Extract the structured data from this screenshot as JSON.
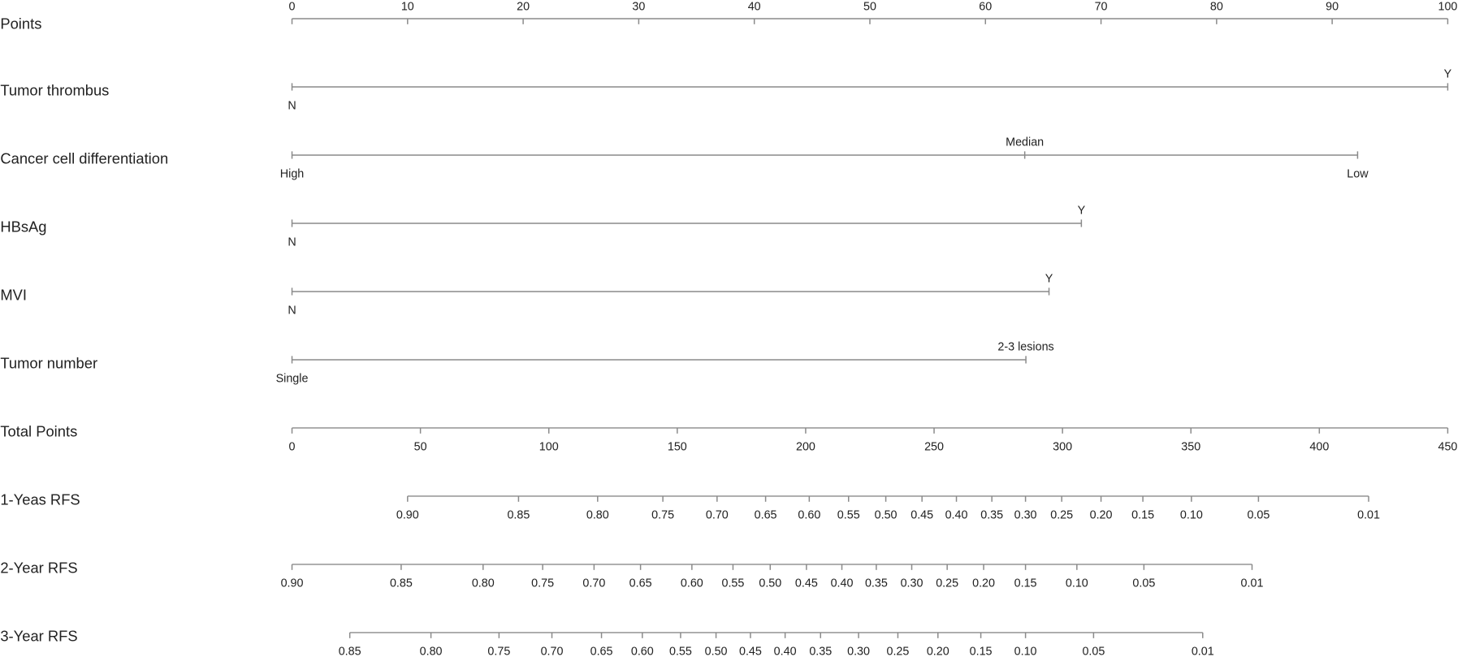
{
  "chart_data": {
    "type": "nomogram",
    "points_axis": {
      "label": "Points",
      "lim": [
        0,
        100
      ],
      "ticks": [
        0,
        10,
        20,
        30,
        40,
        50,
        60,
        70,
        80,
        90,
        100
      ]
    },
    "variables": [
      {
        "name": "Tumor thrombus",
        "levels": [
          {
            "label": "N",
            "points": 0
          },
          {
            "label": "Y",
            "points": 100
          }
        ]
      },
      {
        "name": "Cancer cell differentiation",
        "levels": [
          {
            "label": "High",
            "points": 0
          },
          {
            "label": "Median",
            "points": 63.4
          },
          {
            "label": "Low",
            "points": 92.2
          }
        ]
      },
      {
        "name": "HBsAg",
        "levels": [
          {
            "label": "N",
            "points": 0
          },
          {
            "label": "Y",
            "points": 68.3
          }
        ]
      },
      {
        "name": "MVI",
        "levels": [
          {
            "label": "N",
            "points": 0
          },
          {
            "label": "Y",
            "points": 65.5
          }
        ]
      },
      {
        "name": "Tumor number",
        "levels": [
          {
            "label": "Single",
            "points": 0
          },
          {
            "label": "2-3 lesions",
            "points": 63.5
          }
        ]
      }
    ],
    "total_points_axis": {
      "label": "Total Points",
      "lim": [
        0,
        450
      ],
      "ticks": [
        0,
        50,
        100,
        150,
        200,
        250,
        300,
        350,
        400,
        450
      ]
    },
    "probability_axes": [
      {
        "name": "1-Yeas RFS",
        "ticks": [
          {
            "value": 0.9,
            "label": "0.90",
            "points": 45.0
          },
          {
            "value": 0.85,
            "label": "0.85",
            "points": 88.2
          },
          {
            "value": 0.8,
            "label": "0.80",
            "points": 119.0
          },
          {
            "value": 0.75,
            "label": "0.75",
            "points": 144.4
          },
          {
            "value": 0.7,
            "label": "0.70",
            "points": 165.5
          },
          {
            "value": 0.65,
            "label": "0.65",
            "points": 184.4
          },
          {
            "value": 0.6,
            "label": "0.60",
            "points": 201.4
          },
          {
            "value": 0.55,
            "label": "0.55",
            "points": 216.7
          },
          {
            "value": 0.5,
            "label": "0.50",
            "points": 231.2
          },
          {
            "value": 0.45,
            "label": "0.45",
            "points": 245.3
          },
          {
            "value": 0.4,
            "label": "0.40",
            "points": 258.7
          },
          {
            "value": 0.35,
            "label": "0.35",
            "points": 272.5
          },
          {
            "value": 0.3,
            "label": "0.30",
            "points": 285.6
          },
          {
            "value": 0.25,
            "label": "0.25",
            "points": 299.7
          },
          {
            "value": 0.2,
            "label": "0.20",
            "points": 315.0
          },
          {
            "value": 0.15,
            "label": "0.15",
            "points": 331.3
          },
          {
            "value": 0.1,
            "label": "0.10",
            "points": 350.2
          },
          {
            "value": 0.05,
            "label": "0.05",
            "points": 376.3
          },
          {
            "value": 0.01,
            "label": "0.01",
            "points": 419.2
          }
        ]
      },
      {
        "name": "2-Year RFS",
        "ticks": [
          {
            "value": 0.9,
            "label": "0.90",
            "points": 0
          },
          {
            "value": 0.85,
            "label": "0.85",
            "points": 42.5
          },
          {
            "value": 0.8,
            "label": "0.80",
            "points": 74.4
          },
          {
            "value": 0.75,
            "label": "0.75",
            "points": 97.6
          },
          {
            "value": 0.7,
            "label": "0.70",
            "points": 117.6
          },
          {
            "value": 0.65,
            "label": "0.65",
            "points": 135.7
          },
          {
            "value": 0.6,
            "label": "0.60",
            "points": 155.7
          },
          {
            "value": 0.55,
            "label": "0.55",
            "points": 171.7
          },
          {
            "value": 0.5,
            "label": "0.50",
            "points": 186.2
          },
          {
            "value": 0.45,
            "label": "0.45",
            "points": 200.3
          },
          {
            "value": 0.4,
            "label": "0.40",
            "points": 214.1
          },
          {
            "value": 0.35,
            "label": "0.35",
            "points": 227.5
          },
          {
            "value": 0.3,
            "label": "0.30",
            "points": 241.3
          },
          {
            "value": 0.25,
            "label": "0.25",
            "points": 255.1
          },
          {
            "value": 0.2,
            "label": "0.20",
            "points": 269.3
          },
          {
            "value": 0.15,
            "label": "0.15",
            "points": 285.6
          },
          {
            "value": 0.1,
            "label": "0.10",
            "points": 305.6
          },
          {
            "value": 0.05,
            "label": "0.05",
            "points": 331.7
          },
          {
            "value": 0.01,
            "label": "0.01",
            "points": 373.8
          }
        ]
      },
      {
        "name": "3-Year RFS",
        "ticks": [
          {
            "value": 0.85,
            "label": "0.85",
            "points": 22.5
          },
          {
            "value": 0.8,
            "label": "0.80",
            "points": 54.1
          },
          {
            "value": 0.75,
            "label": "0.75",
            "points": 80.6
          },
          {
            "value": 0.7,
            "label": "0.70",
            "points": 101.2
          },
          {
            "value": 0.65,
            "label": "0.65",
            "points": 120.5
          },
          {
            "value": 0.6,
            "label": "0.60",
            "points": 136.4
          },
          {
            "value": 0.55,
            "label": "0.55",
            "points": 151.3
          },
          {
            "value": 0.5,
            "label": "0.50",
            "points": 165.1
          },
          {
            "value": 0.45,
            "label": "0.45",
            "points": 178.5
          },
          {
            "value": 0.4,
            "label": "0.40",
            "points": 192.0
          },
          {
            "value": 0.35,
            "label": "0.35",
            "points": 205.8
          },
          {
            "value": 0.3,
            "label": "0.30",
            "points": 220.6
          },
          {
            "value": 0.25,
            "label": "0.25",
            "points": 235.9
          },
          {
            "value": 0.2,
            "label": "0.20",
            "points": 251.5
          },
          {
            "value": 0.15,
            "label": "0.15",
            "points": 268.2
          },
          {
            "value": 0.1,
            "label": "0.10",
            "points": 285.6
          },
          {
            "value": 0.05,
            "label": "0.05",
            "points": 312.1
          },
          {
            "value": 0.01,
            "label": "0.01",
            "points": 354.6
          }
        ]
      }
    ]
  }
}
